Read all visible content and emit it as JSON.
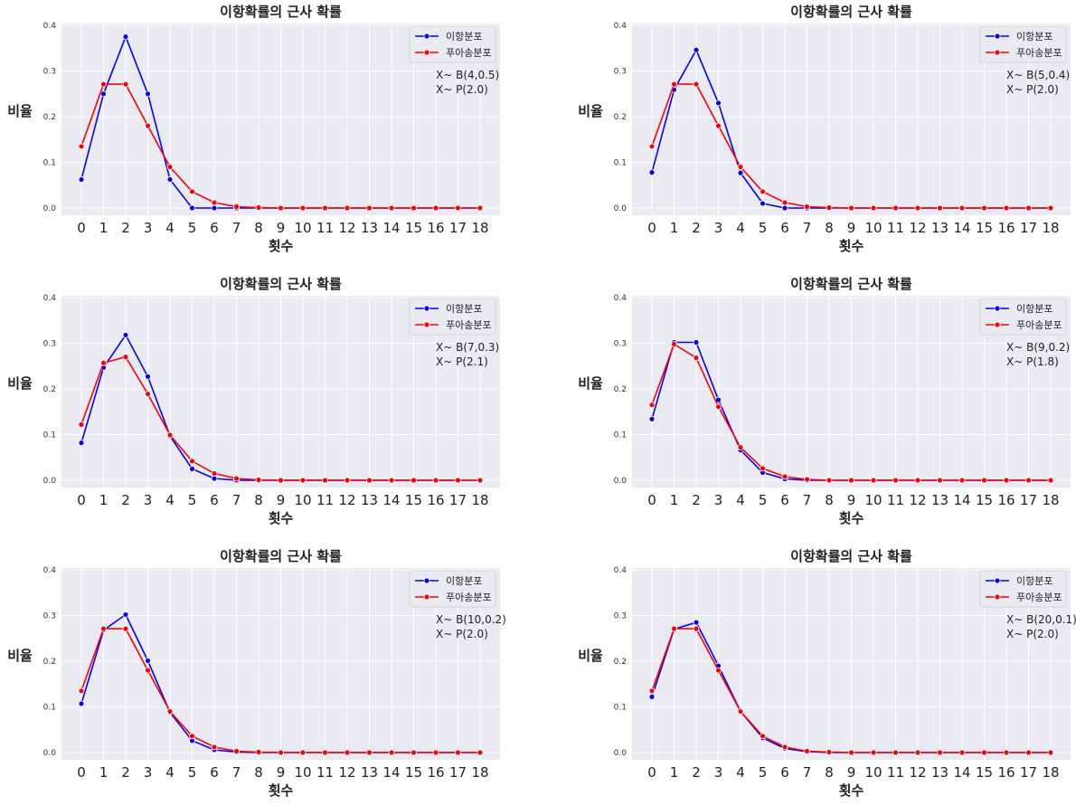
{
  "colors": {
    "binomial": "#0000ff",
    "poisson": "#ff0000",
    "plot_bg": "#eaeaf2",
    "grid": "#ffffff"
  },
  "chart_data": [
    {
      "type": "line",
      "title": "이항확률의 근사 확률",
      "xlabel": "횟수",
      "ylabel": "비율",
      "x": [
        0,
        1,
        2,
        3,
        4,
        5,
        6,
        7,
        8,
        9,
        10,
        11,
        12,
        13,
        14,
        15,
        16,
        17,
        18
      ],
      "ylim": [
        0,
        0.4
      ],
      "yticks": [
        "0.0",
        "0.1",
        "0.2",
        "0.3",
        "0.4"
      ],
      "legend": "top-right",
      "grid": true,
      "annotation": [
        "X~ B(4,0.5)",
        "X~ P(2.0)"
      ],
      "series": [
        {
          "name": "이항분포",
          "values": [
            0.0625,
            0.25,
            0.375,
            0.25,
            0.0625,
            0,
            0,
            0,
            0,
            0,
            0,
            0,
            0,
            0,
            0,
            0,
            0,
            0,
            0
          ]
        },
        {
          "name": "푸아송분포",
          "values": [
            0.135,
            0.271,
            0.271,
            0.18,
            0.09,
            0.036,
            0.012,
            0.003,
            0.001,
            0,
            0,
            0,
            0,
            0,
            0,
            0,
            0,
            0,
            0
          ]
        }
      ]
    },
    {
      "type": "line",
      "title": "이항확률의 근사 확률",
      "xlabel": "횟수",
      "ylabel": "비율",
      "x": [
        0,
        1,
        2,
        3,
        4,
        5,
        6,
        7,
        8,
        9,
        10,
        11,
        12,
        13,
        14,
        15,
        16,
        17,
        18
      ],
      "ylim": [
        0,
        0.4
      ],
      "yticks": [
        "0.0",
        "0.1",
        "0.2",
        "0.3",
        "0.4"
      ],
      "legend": "top-right",
      "grid": true,
      "annotation": [
        "X~ B(5,0.4)",
        "X~ P(2.0)"
      ],
      "series": [
        {
          "name": "이항분포",
          "values": [
            0.078,
            0.259,
            0.346,
            0.23,
            0.077,
            0.01,
            0,
            0,
            0,
            0,
            0,
            0,
            0,
            0,
            0,
            0,
            0,
            0,
            0
          ]
        },
        {
          "name": "푸아송분포",
          "values": [
            0.135,
            0.271,
            0.271,
            0.18,
            0.09,
            0.036,
            0.012,
            0.003,
            0.001,
            0,
            0,
            0,
            0,
            0,
            0,
            0,
            0,
            0,
            0
          ]
        }
      ]
    },
    {
      "type": "line",
      "title": "이항확률의 근사 확률",
      "xlabel": "횟수",
      "ylabel": "비율",
      "x": [
        0,
        1,
        2,
        3,
        4,
        5,
        6,
        7,
        8,
        9,
        10,
        11,
        12,
        13,
        14,
        15,
        16,
        17,
        18
      ],
      "ylim": [
        0,
        0.4
      ],
      "yticks": [
        "0.0",
        "0.1",
        "0.2",
        "0.3",
        "0.4"
      ],
      "legend": "top-right",
      "grid": true,
      "annotation": [
        "X~ B(7,0.3)",
        "X~ P(2.1)"
      ],
      "series": [
        {
          "name": "이항분포",
          "values": [
            0.082,
            0.247,
            0.318,
            0.227,
            0.097,
            0.025,
            0.004,
            0.0002,
            0,
            0,
            0,
            0,
            0,
            0,
            0,
            0,
            0,
            0,
            0
          ]
        },
        {
          "name": "푸아송분포",
          "values": [
            0.122,
            0.257,
            0.27,
            0.189,
            0.099,
            0.042,
            0.015,
            0.004,
            0.001,
            0,
            0,
            0,
            0,
            0,
            0,
            0,
            0,
            0,
            0
          ]
        }
      ]
    },
    {
      "type": "line",
      "title": "이항확률의 근사 확률",
      "xlabel": "횟수",
      "ylabel": "비율",
      "x": [
        0,
        1,
        2,
        3,
        4,
        5,
        6,
        7,
        8,
        9,
        10,
        11,
        12,
        13,
        14,
        15,
        16,
        17,
        18
      ],
      "ylim": [
        0,
        0.4
      ],
      "yticks": [
        "0.0",
        "0.1",
        "0.2",
        "0.3",
        "0.4"
      ],
      "legend": "top-right",
      "grid": true,
      "annotation": [
        "X~ B(9,0.2)",
        "X~ P(1.8)"
      ],
      "series": [
        {
          "name": "이항분포",
          "values": [
            0.134,
            0.302,
            0.302,
            0.176,
            0.066,
            0.017,
            0.003,
            0,
            0,
            0,
            0,
            0,
            0,
            0,
            0,
            0,
            0,
            0,
            0
          ]
        },
        {
          "name": "푸아송분포",
          "values": [
            0.165,
            0.298,
            0.268,
            0.161,
            0.072,
            0.026,
            0.008,
            0.002,
            0,
            0,
            0,
            0,
            0,
            0,
            0,
            0,
            0,
            0,
            0
          ]
        }
      ]
    },
    {
      "type": "line",
      "title": "이항확률의 근사 확률",
      "xlabel": "횟수",
      "ylabel": "비율",
      "x": [
        0,
        1,
        2,
        3,
        4,
        5,
        6,
        7,
        8,
        9,
        10,
        11,
        12,
        13,
        14,
        15,
        16,
        17,
        18
      ],
      "ylim": [
        0,
        0.4
      ],
      "yticks": [
        "0.0",
        "0.1",
        "0.2",
        "0.3",
        "0.4"
      ],
      "legend": "top-right",
      "grid": true,
      "annotation": [
        "X~ B(10,0.2)",
        "X~ P(2.0)"
      ],
      "series": [
        {
          "name": "이항분포",
          "values": [
            0.107,
            0.268,
            0.302,
            0.201,
            0.088,
            0.026,
            0.006,
            0.001,
            0,
            0,
            0,
            0,
            0,
            0,
            0,
            0,
            0,
            0,
            0
          ]
        },
        {
          "name": "푸아송분포",
          "values": [
            0.135,
            0.271,
            0.271,
            0.18,
            0.09,
            0.036,
            0.012,
            0.003,
            0.001,
            0,
            0,
            0,
            0,
            0,
            0,
            0,
            0,
            0,
            0
          ]
        }
      ]
    },
    {
      "type": "line",
      "title": "이항확률의 근사 확률",
      "xlabel": "횟수",
      "ylabel": "비율",
      "x": [
        0,
        1,
        2,
        3,
        4,
        5,
        6,
        7,
        8,
        9,
        10,
        11,
        12,
        13,
        14,
        15,
        16,
        17,
        18
      ],
      "ylim": [
        0,
        0.4
      ],
      "yticks": [
        "0.0",
        "0.1",
        "0.2",
        "0.3",
        "0.4"
      ],
      "legend": "top-right",
      "grid": true,
      "annotation": [
        "X~ B(20,0.1)",
        "X~ P(2.0)"
      ],
      "series": [
        {
          "name": "이항분포",
          "values": [
            0.122,
            0.27,
            0.285,
            0.19,
            0.09,
            0.032,
            0.009,
            0.002,
            0,
            0,
            0,
            0,
            0,
            0,
            0,
            0,
            0,
            0,
            0
          ]
        },
        {
          "name": "푸아송분포",
          "values": [
            0.135,
            0.271,
            0.271,
            0.18,
            0.09,
            0.036,
            0.012,
            0.003,
            0.001,
            0,
            0,
            0,
            0,
            0,
            0,
            0,
            0,
            0,
            0
          ]
        }
      ]
    }
  ]
}
